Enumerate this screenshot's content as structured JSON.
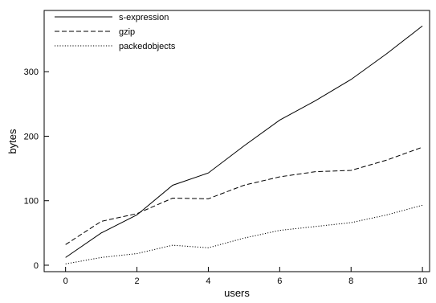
{
  "chart_data": {
    "type": "line",
    "title": "",
    "xlabel": "users",
    "ylabel": "bytes",
    "xlim": [
      -0.6,
      10.2
    ],
    "ylim": [
      -10,
      395
    ],
    "xticks": [
      0,
      2,
      4,
      6,
      8,
      10
    ],
    "yticks": [
      0,
      100,
      200,
      300
    ],
    "grid": false,
    "legend_placement": "top-left",
    "x": [
      0,
      1,
      2,
      3,
      4,
      5,
      6,
      7,
      8,
      9,
      10
    ],
    "series": [
      {
        "name": "s-expression",
        "line_style": "solid",
        "values": [
          12,
          50,
          78,
          124,
          143,
          185,
          225,
          255,
          288,
          328,
          371
        ]
      },
      {
        "name": "gzip",
        "line_style": "dashed",
        "values": [
          32,
          68,
          80,
          104,
          103,
          124,
          137,
          145,
          147,
          163,
          183
        ]
      },
      {
        "name": "packedobjects",
        "line_style": "dotted",
        "values": [
          2,
          12,
          18,
          31,
          27,
          42,
          54,
          60,
          66,
          78,
          93
        ]
      }
    ],
    "colors": {
      "lines": "#000000",
      "background": "#ffffff"
    }
  }
}
